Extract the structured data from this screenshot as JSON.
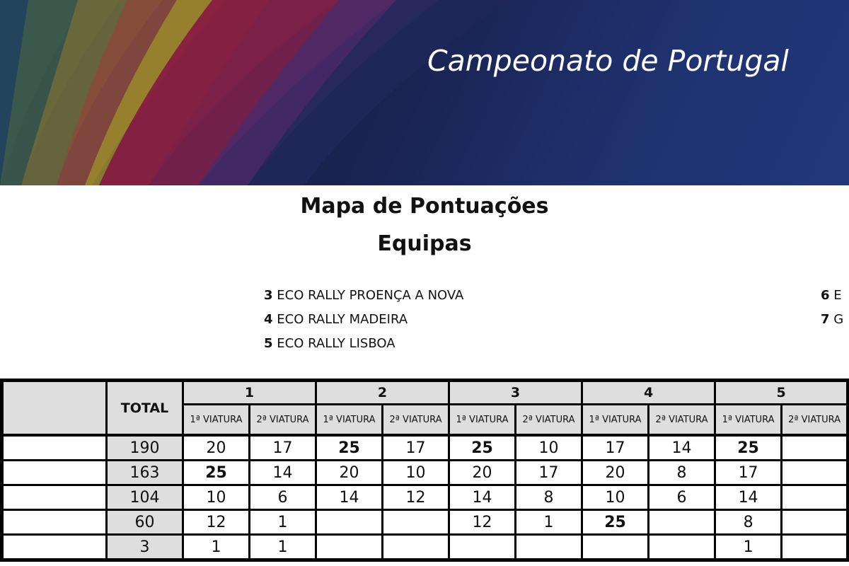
{
  "banner": {
    "title": "Campeonato de Portugal"
  },
  "heading": {
    "line1": "Mapa de Pontuações",
    "line2": "Equipas"
  },
  "legend": [
    {
      "num": "3",
      "name": "ECO RALLY PROENÇA A NOVA"
    },
    {
      "num": "4",
      "name": "ECO RALLY MADEIRA"
    },
    {
      "num": "5",
      "name": "ECO RALLY LISBOA"
    },
    {
      "num": "6",
      "name": "E"
    },
    {
      "num": "7",
      "name": "G"
    }
  ],
  "table": {
    "total_label": "TOTAL",
    "rounds": [
      "1",
      "2",
      "3",
      "4",
      "5"
    ],
    "sub_labels": [
      "1ª VIATURA",
      "2ª VIATURA"
    ],
    "rows": [
      {
        "team": "",
        "total": "190",
        "scores": [
          "20",
          "17",
          "25",
          "17",
          "25",
          "10",
          "17",
          "14",
          "25",
          ""
        ]
      },
      {
        "team": "",
        "total": "163",
        "scores": [
          "25",
          "14",
          "20",
          "10",
          "20",
          "17",
          "20",
          "8",
          "17",
          ""
        ]
      },
      {
        "team": "",
        "total": "104",
        "scores": [
          "10",
          "6",
          "14",
          "12",
          "14",
          "8",
          "10",
          "6",
          "14",
          ""
        ]
      },
      {
        "team": "",
        "total": "60",
        "scores": [
          "12",
          "1",
          "",
          "",
          "12",
          "1",
          "25",
          "",
          "8",
          ""
        ]
      },
      {
        "team": "",
        "total": "3",
        "scores": [
          "1",
          "1",
          "",
          "",
          "",
          "",
          "",
          "",
          "1",
          ""
        ]
      }
    ],
    "bold_value": "25",
    "header_bg": "#dedede"
  }
}
